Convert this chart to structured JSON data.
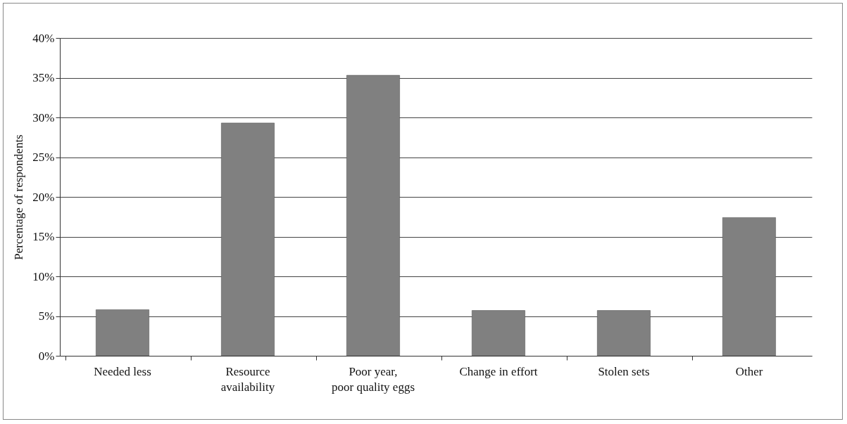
{
  "chart_data": {
    "type": "bar",
    "ylabel": "Percentage of respondents",
    "categories": [
      "Needed less",
      "Resource availability",
      "Poor year, poor quality eggs",
      "Change in effort",
      "Stolen sets",
      "Other"
    ],
    "values": [
      5.8,
      29.3,
      35.3,
      5.7,
      5.7,
      17.4
    ],
    "color": "#808080",
    "ylim": [
      0,
      40
    ],
    "yticks": [
      {
        "value": 0,
        "label": "0%"
      },
      {
        "value": 5,
        "label": "5%"
      },
      {
        "value": 10,
        "label": "10%"
      },
      {
        "value": 15,
        "label": "15%"
      },
      {
        "value": 20,
        "label": "20%"
      },
      {
        "value": 25,
        "label": "25%"
      },
      {
        "value": 30,
        "label": "30%"
      },
      {
        "value": 35,
        "label": "35%"
      },
      {
        "value": 40,
        "label": "40%"
      }
    ],
    "grid": "y"
  }
}
